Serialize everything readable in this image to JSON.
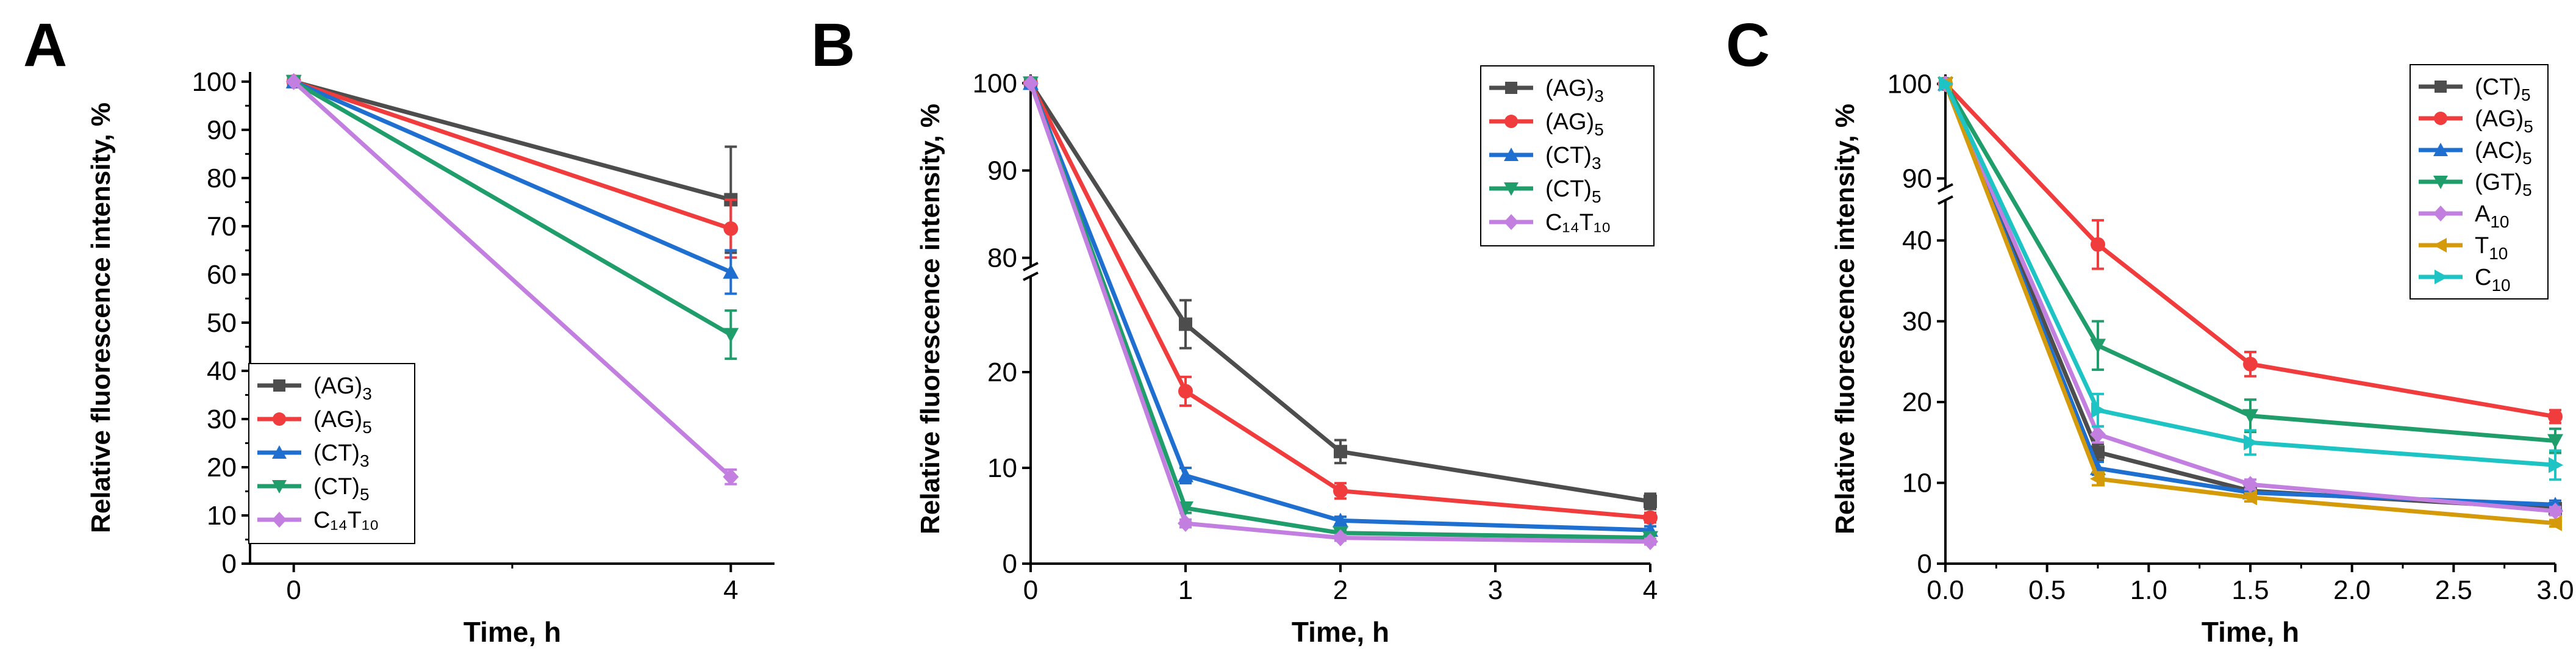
{
  "colors": {
    "dark_gray": "#4d4d4d",
    "red": "#f03c3c",
    "blue": "#1f6fd1",
    "green": "#1f9d6b",
    "violet": "#c27fe0",
    "gold": "#d49a0a",
    "cyan": "#1ec4c4"
  },
  "chart_data": [
    {
      "panel": "A",
      "type": "line",
      "xlabel": "Time, h",
      "ylabel": "Relative fluorescence intensity, %",
      "xlim": [
        -0.4,
        4.4
      ],
      "ylim": [
        0,
        102
      ],
      "xticks": [
        "0",
        "4"
      ],
      "yticks": [
        "0",
        "10",
        "20",
        "30",
        "40",
        "50",
        "60",
        "70",
        "80",
        "90",
        "100"
      ],
      "legend_position": "bottom-left",
      "series": [
        {
          "name": "(AG)",
          "sub": "3",
          "color": "#4d4d4d",
          "marker": "square",
          "x": [
            0,
            4
          ],
          "y": [
            100,
            75.5
          ],
          "err": [
            0,
            11
          ]
        },
        {
          "name": "(AG)",
          "sub": "5",
          "color": "#f03c3c",
          "marker": "circle",
          "x": [
            0,
            4
          ],
          "y": [
            100,
            69.5
          ],
          "err": [
            0,
            6
          ]
        },
        {
          "name": "(CT)",
          "sub": "3",
          "color": "#1f6fd1",
          "marker": "triangle-up",
          "x": [
            0,
            4
          ],
          "y": [
            100,
            60.5
          ],
          "err": [
            0,
            4.5
          ]
        },
        {
          "name": "(CT)",
          "sub": "5",
          "color": "#1f9d6b",
          "marker": "triangle-down",
          "x": [
            0,
            4
          ],
          "y": [
            100,
            47.5
          ],
          "err": [
            0,
            5
          ]
        },
        {
          "name": "C₁₄T₁₀",
          "sub": "",
          "color": "#c27fe0",
          "marker": "diamond",
          "x": [
            0,
            4
          ],
          "y": [
            100,
            18
          ],
          "err": [
            0,
            1.5
          ]
        }
      ]
    },
    {
      "panel": "B",
      "type": "line",
      "xlabel": "Time, h",
      "ylabel": "Relative fluorescence intensity, %",
      "xlim": [
        0,
        4
      ],
      "ylim_lower": [
        0,
        30
      ],
      "ylim_upper": [
        79,
        101
      ],
      "xticks": [
        "0",
        "1",
        "2",
        "3",
        "4"
      ],
      "yticks_lower": [
        "0",
        "10",
        "20"
      ],
      "yticks_upper": [
        "80",
        "90",
        "100"
      ],
      "legend_position": "top-right",
      "series": [
        {
          "name": "(AG)",
          "sub": "3",
          "color": "#4d4d4d",
          "marker": "square",
          "x": [
            0,
            1,
            2,
            4
          ],
          "y": [
            100,
            25,
            11.7,
            6.5
          ],
          "err": [
            0,
            2.5,
            1.2,
            0.8
          ]
        },
        {
          "name": "(AG)",
          "sub": "5",
          "color": "#f03c3c",
          "marker": "circle",
          "x": [
            0,
            1,
            2,
            4
          ],
          "y": [
            100,
            18,
            7.6,
            4.8
          ],
          "err": [
            0,
            1.5,
            0.8,
            0.5
          ]
        },
        {
          "name": "(CT)",
          "sub": "3",
          "color": "#1f6fd1",
          "marker": "triangle-up",
          "x": [
            0,
            1,
            2,
            4
          ],
          "y": [
            100,
            9.2,
            4.5,
            3.5
          ],
          "err": [
            0,
            0.8,
            0.4,
            0.4
          ]
        },
        {
          "name": "(CT)",
          "sub": "5",
          "color": "#1f9d6b",
          "marker": "triangle-down",
          "x": [
            0,
            1,
            2,
            4
          ],
          "y": [
            100,
            5.8,
            3.2,
            2.7
          ],
          "err": [
            0,
            0.5,
            0.3,
            0.3
          ]
        },
        {
          "name": "C₁₄T₁₀",
          "sub": "",
          "color": "#c27fe0",
          "marker": "diamond",
          "x": [
            0,
            1,
            2,
            4
          ],
          "y": [
            100,
            4.2,
            2.7,
            2.3
          ],
          "err": [
            0,
            0.4,
            0.3,
            0.3
          ]
        }
      ]
    },
    {
      "panel": "C",
      "type": "line",
      "xlabel": "Time, h",
      "ylabel": "Relative fluorescence intensity, %",
      "xlim": [
        0,
        3
      ],
      "ylim_lower": [
        0,
        45
      ],
      "ylim_upper": [
        89,
        101
      ],
      "xticks": [
        "0.0",
        "0.5",
        "1.0",
        "1.5",
        "2.0",
        "2.5",
        "3.0"
      ],
      "yticks_lower": [
        "0",
        "10",
        "20",
        "30",
        "40"
      ],
      "yticks_upper": [
        "90",
        "100"
      ],
      "legend_position": "top-right",
      "series": [
        {
          "name": "(CT)",
          "sub": "5",
          "color": "#4d4d4d",
          "marker": "square",
          "x": [
            0,
            0.75,
            1.5,
            3.0
          ],
          "y": [
            100,
            13.8,
            9.0,
            6.8
          ],
          "err": [
            0,
            1.0,
            0.6,
            0.5
          ]
        },
        {
          "name": "(AG)",
          "sub": "5",
          "color": "#f03c3c",
          "marker": "circle",
          "x": [
            0,
            0.75,
            1.5,
            3.0
          ],
          "y": [
            100,
            39.5,
            24.7,
            18.2
          ],
          "err": [
            0,
            3.0,
            1.5,
            0.8
          ]
        },
        {
          "name": "(AC)",
          "sub": "5",
          "color": "#1f6fd1",
          "marker": "triangle-up",
          "x": [
            0,
            0.75,
            1.5,
            3.0
          ],
          "y": [
            100,
            11.8,
            8.8,
            7.3
          ],
          "err": [
            0,
            0.8,
            0.5,
            0.5
          ]
        },
        {
          "name": "(GT)",
          "sub": "5",
          "color": "#1f9d6b",
          "marker": "triangle-down",
          "x": [
            0,
            0.75,
            1.5,
            3.0
          ],
          "y": [
            100,
            27.0,
            18.3,
            15.2
          ],
          "err": [
            0,
            3.0,
            2.0,
            1.5
          ]
        },
        {
          "name": "A",
          "sub": "10",
          "color": "#c27fe0",
          "marker": "diamond",
          "x": [
            0,
            0.75,
            1.5,
            3.0
          ],
          "y": [
            100,
            16.0,
            9.8,
            6.5
          ],
          "err": [
            0,
            1.0,
            0.6,
            0.5
          ]
        },
        {
          "name": "T",
          "sub": "10",
          "color": "#d49a0a",
          "marker": "triangle-left",
          "x": [
            0,
            0.75,
            1.5,
            3.0
          ],
          "y": [
            100,
            10.5,
            8.2,
            5.0
          ],
          "err": [
            0,
            0.8,
            0.5,
            0.4
          ]
        },
        {
          "name": "C",
          "sub": "10",
          "color": "#1ec4c4",
          "marker": "triangle-right",
          "x": [
            0,
            0.75,
            1.5,
            3.0
          ],
          "y": [
            100,
            19.0,
            15.0,
            12.2
          ],
          "err": [
            0,
            2.0,
            1.5,
            1.8
          ]
        }
      ]
    }
  ]
}
